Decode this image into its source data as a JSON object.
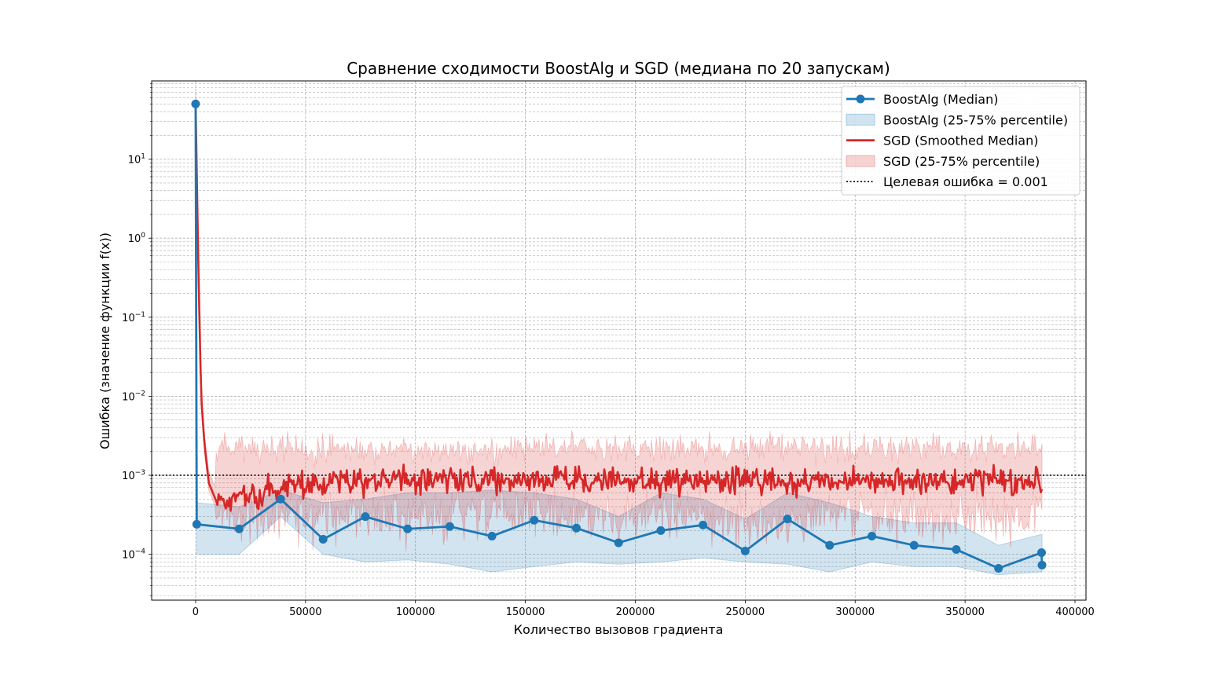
{
  "chart_data": {
    "type": "line",
    "title": "Сравнение сходимости BoostAlg и SGD (медиана по 20 запускам)",
    "xlabel": "Количество вызовов градиента",
    "ylabel": "Ошибка (значение функции f(x))",
    "xlim": [
      -20000,
      405000
    ],
    "ylim_log10": [
      -4.58,
      1.99
    ],
    "y_scale": "log",
    "grid": true,
    "x_ticks": [
      {
        "value": 0,
        "label": "0"
      },
      {
        "value": 50000,
        "label": "50000"
      },
      {
        "value": 100000,
        "label": "100000"
      },
      {
        "value": 150000,
        "label": "150000"
      },
      {
        "value": 200000,
        "label": "200000"
      },
      {
        "value": 250000,
        "label": "250000"
      },
      {
        "value": 300000,
        "label": "300000"
      },
      {
        "value": 350000,
        "label": "350000"
      },
      {
        "value": 400000,
        "label": "400000"
      }
    ],
    "y_ticks": [
      {
        "exp": 1,
        "base": "10",
        "sup": "1"
      },
      {
        "exp": 0,
        "base": "10",
        "sup": "0"
      },
      {
        "exp": -1,
        "base": "10",
        "sup": "−1"
      },
      {
        "exp": -2,
        "base": "10",
        "sup": "−2"
      },
      {
        "exp": -3,
        "base": "10",
        "sup": "−3"
      },
      {
        "exp": -4,
        "base": "10",
        "sup": "−4"
      }
    ],
    "legend_position": "top-right",
    "legend": [
      {
        "label": "BoostAlg (Median)",
        "kind": "line-marker",
        "color": "#1f77b4"
      },
      {
        "label": "BoostAlg (25-75% percentile)",
        "kind": "band",
        "color": "#1f77b4"
      },
      {
        "label": "SGD (Smoothed Median)",
        "kind": "line",
        "color": "#d62728"
      },
      {
        "label": "SGD (25-75% percentile)",
        "kind": "band",
        "color": "#d62728"
      },
      {
        "label": "Целевая ошибка = 0.001",
        "kind": "dotted",
        "color": "#000000"
      }
    ],
    "series": [
      {
        "name": "BoostAlg (Median)",
        "color": "#1f77b4",
        "points": [
          [
            0,
            50
          ],
          [
            500,
            0.00024
          ],
          [
            19800,
            0.00021
          ],
          [
            38700,
            0.0005
          ],
          [
            58000,
            0.000155
          ],
          [
            77200,
            0.0003
          ],
          [
            96400,
            0.00021
          ],
          [
            115600,
            0.000225
          ],
          [
            134800,
            0.00017
          ],
          [
            154000,
            0.00027
          ],
          [
            173200,
            0.000215
          ],
          [
            192400,
            0.00014
          ],
          [
            211600,
            0.0002
          ],
          [
            230800,
            0.000235
          ],
          [
            250000,
            0.00011
          ],
          [
            269200,
            0.00028
          ],
          [
            288400,
            0.00013
          ],
          [
            307600,
            0.00017
          ],
          [
            326800,
            0.00013
          ],
          [
            346000,
            0.000115
          ],
          [
            365200,
            6.65e-05
          ],
          [
            384800,
            0.000105
          ],
          [
            385000,
            7.3e-05
          ]
        ],
        "band_x": [
          0,
          500,
          19800,
          38700,
          58000,
          77200,
          96400,
          115600,
          134800,
          154000,
          173200,
          192400,
          211600,
          230800,
          250000,
          269200,
          288400,
          307600,
          326800,
          346000,
          365200,
          385000
        ],
        "band_low": [
          50,
          0.0001,
          0.0001,
          0.0003,
          0.0001,
          8e-05,
          8.5e-05,
          7.5e-05,
          6e-05,
          7e-05,
          8e-05,
          7.5e-05,
          8e-05,
          9e-05,
          8e-05,
          7.5e-05,
          6e-05,
          8e-05,
          7e-05,
          7e-05,
          5.5e-05,
          6e-05
        ],
        "band_high": [
          50,
          0.00045,
          0.0004,
          0.00065,
          0.00045,
          0.0005,
          0.0006,
          0.0006,
          0.00065,
          0.0006,
          0.0005,
          0.0003,
          0.0006,
          0.0005,
          0.00028,
          0.0006,
          0.00045,
          0.0003,
          0.00025,
          0.00025,
          0.00013,
          0.00018
        ]
      },
      {
        "name": "SGD (Smoothed Median)",
        "color": "#d62728",
        "description_free": true,
        "start": [
          0,
          50
        ],
        "decay": [
          [
            0,
            50
          ],
          [
            1200,
            0.5
          ],
          [
            2500,
            0.01
          ],
          [
            4000,
            0.0025
          ],
          [
            6000,
            0.0008
          ],
          [
            9000,
            0.0005
          ],
          [
            20000,
            0.0005
          ],
          [
            40000,
            0.0007
          ],
          [
            60000,
            0.0008
          ]
        ],
        "plateau_level": 0.00085,
        "plateau_amplitude_log10": 0.14,
        "band_plateau_low": 0.0003,
        "band_plateau_high": 0.0022,
        "x_end": 385000,
        "sample_count": 700
      },
      {
        "name": "Целевая ошибка = 0.001",
        "color": "#000000",
        "value": 0.001
      }
    ]
  }
}
